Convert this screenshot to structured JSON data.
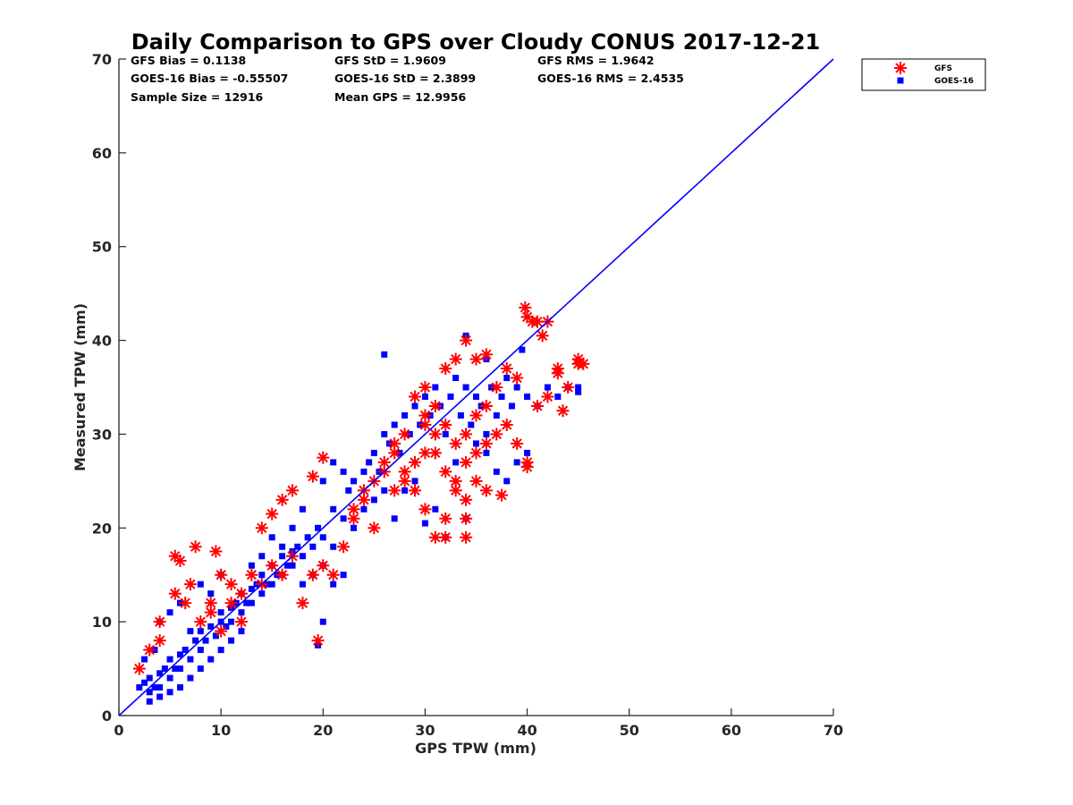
{
  "chart_data": {
    "type": "scatter",
    "title": "Daily Comparison to GPS over Cloudy CONUS 2017-12-21",
    "xlabel": "GPS TPW (mm)",
    "ylabel": "Measured TPW (mm)",
    "xlim": [
      0,
      70
    ],
    "ylim": [
      0,
      70
    ],
    "x_ticks": [
      "0",
      "10",
      "20",
      "30",
      "40",
      "50",
      "60",
      "70"
    ],
    "y_ticks": [
      "0",
      "10",
      "20",
      "30",
      "40",
      "50",
      "60",
      "70"
    ],
    "grid": false,
    "legend_position": "top-right, outside plot",
    "stats": [
      {
        "id": "gfs_bias",
        "text": "GFS Bias = 0.1138"
      },
      {
        "id": "gfs_std",
        "text": "GFS StD = 1.9609"
      },
      {
        "id": "gfs_rms",
        "text": "GFS RMS = 1.9642"
      },
      {
        "id": "goes_bias",
        "text": "GOES-16 Bias = -0.55507"
      },
      {
        "id": "goes_std",
        "text": "GOES-16 StD = 2.3899"
      },
      {
        "id": "goes_rms",
        "text": "GOES-16 RMS = 2.4535"
      },
      {
        "id": "sample_size",
        "text": "Sample Size = 12916"
      },
      {
        "id": "mean_gps",
        "text": "Mean GPS = 12.9956"
      }
    ],
    "reference_line": {
      "x": [
        0,
        70
      ],
      "y": [
        0,
        70
      ],
      "color": "#0000ff"
    },
    "series": [
      {
        "name": "GOES-16",
        "marker": "square",
        "color": "#0000ff",
        "points": [
          [
            2,
            3
          ],
          [
            2.5,
            3.5
          ],
          [
            3,
            2.5
          ],
          [
            3,
            4
          ],
          [
            3.5,
            3
          ],
          [
            4,
            4.5
          ],
          [
            4,
            3
          ],
          [
            4.5,
            5
          ],
          [
            5,
            4
          ],
          [
            5,
            6
          ],
          [
            5.5,
            5
          ],
          [
            6,
            6.5
          ],
          [
            6,
            5
          ],
          [
            6.5,
            7
          ],
          [
            7,
            6
          ],
          [
            7.5,
            8
          ],
          [
            8,
            7
          ],
          [
            8,
            9
          ],
          [
            8.5,
            8
          ],
          [
            9,
            9.5
          ],
          [
            9.5,
            8.5
          ],
          [
            10,
            10
          ],
          [
            10,
            11
          ],
          [
            10.5,
            9.5
          ],
          [
            11,
            11.5
          ],
          [
            11,
            10
          ],
          [
            11.5,
            12
          ],
          [
            12,
            11
          ],
          [
            12,
            13
          ],
          [
            12.5,
            12
          ],
          [
            13,
            13.5
          ],
          [
            13,
            12
          ],
          [
            13.5,
            14
          ],
          [
            14,
            13
          ],
          [
            14,
            15
          ],
          [
            14.5,
            14
          ],
          [
            15,
            16
          ],
          [
            15,
            14
          ],
          [
            15.5,
            15
          ],
          [
            16,
            17
          ],
          [
            16,
            15
          ],
          [
            16.5,
            16
          ],
          [
            17,
            17.5
          ],
          [
            17,
            16
          ],
          [
            17.5,
            18
          ],
          [
            18,
            17
          ],
          [
            18.5,
            19
          ],
          [
            19,
            18
          ],
          [
            19.5,
            20
          ],
          [
            20,
            19
          ],
          [
            21,
            22
          ],
          [
            22,
            21
          ],
          [
            22.5,
            24
          ],
          [
            23,
            25
          ],
          [
            24,
            26
          ],
          [
            24.5,
            27
          ],
          [
            25,
            28
          ],
          [
            25.5,
            26
          ],
          [
            26,
            30
          ],
          [
            26.5,
            29
          ],
          [
            27,
            31
          ],
          [
            27.5,
            28
          ],
          [
            28,
            32
          ],
          [
            28.5,
            30
          ],
          [
            29,
            33
          ],
          [
            29.5,
            31
          ],
          [
            30,
            34
          ],
          [
            30.5,
            32
          ],
          [
            31,
            35
          ],
          [
            31.5,
            33
          ],
          [
            32,
            30
          ],
          [
            32.5,
            34
          ],
          [
            33,
            36
          ],
          [
            33.5,
            32
          ],
          [
            34,
            35
          ],
          [
            34.5,
            31
          ],
          [
            35,
            34
          ],
          [
            35.5,
            33
          ],
          [
            36,
            30
          ],
          [
            36.5,
            35
          ],
          [
            37,
            32
          ],
          [
            37.5,
            34
          ],
          [
            38,
            36
          ],
          [
            38.5,
            33
          ],
          [
            39,
            35
          ],
          [
            40,
            34
          ],
          [
            41,
            33
          ],
          [
            42,
            35
          ],
          [
            43,
            34
          ],
          [
            44,
            35
          ],
          [
            45,
            35
          ],
          [
            45,
            34.5
          ],
          [
            26,
            38.5
          ],
          [
            30,
            20.5
          ],
          [
            32,
            19
          ],
          [
            34,
            21
          ],
          [
            31,
            22
          ],
          [
            27,
            21
          ],
          [
            28,
            24
          ],
          [
            29,
            25
          ],
          [
            33,
            27
          ],
          [
            35,
            29
          ],
          [
            36,
            28
          ],
          [
            37,
            26
          ],
          [
            38,
            25
          ],
          [
            39,
            27
          ],
          [
            40,
            28
          ],
          [
            34,
            40.5
          ],
          [
            39.5,
            39
          ],
          [
            36,
            38
          ],
          [
            3,
            1.5
          ],
          [
            4,
            2
          ],
          [
            5,
            2.5
          ],
          [
            6,
            3
          ],
          [
            7,
            4
          ],
          [
            8,
            5
          ],
          [
            9,
            6
          ],
          [
            10,
            7
          ],
          [
            11,
            8
          ],
          [
            12,
            9
          ],
          [
            5,
            11
          ],
          [
            6,
            12
          ],
          [
            4,
            10
          ],
          [
            7,
            9
          ],
          [
            2.5,
            6
          ],
          [
            3.5,
            7
          ],
          [
            9,
            13
          ],
          [
            8,
            14
          ],
          [
            10,
            15
          ],
          [
            20,
            10
          ],
          [
            19.5,
            7.5
          ],
          [
            22,
            15
          ],
          [
            21,
            18
          ],
          [
            23,
            20
          ],
          [
            24,
            22
          ],
          [
            25,
            23
          ],
          [
            26,
            24
          ],
          [
            20,
            25
          ],
          [
            21,
            27
          ],
          [
            22,
            26
          ],
          [
            18,
            22
          ],
          [
            17,
            20
          ],
          [
            16,
            18
          ],
          [
            15,
            19
          ],
          [
            14,
            17
          ],
          [
            13,
            16
          ],
          [
            18,
            14
          ],
          [
            19,
            15
          ],
          [
            20,
            16
          ],
          [
            21,
            14
          ]
        ]
      },
      {
        "name": "GFS",
        "marker": "asterisk",
        "color": "#ff0000",
        "points": [
          [
            2,
            5
          ],
          [
            3,
            7
          ],
          [
            4,
            8
          ],
          [
            5.5,
            17
          ],
          [
            6,
            16.5
          ],
          [
            7,
            14
          ],
          [
            7.5,
            18
          ],
          [
            9.5,
            17.5
          ],
          [
            10,
            15
          ],
          [
            5.5,
            13
          ],
          [
            6.5,
            12
          ],
          [
            4,
            10
          ],
          [
            9,
            11
          ],
          [
            11,
            12
          ],
          [
            12,
            10
          ],
          [
            19.5,
            8
          ],
          [
            18,
            12
          ],
          [
            19,
            15
          ],
          [
            20,
            16
          ],
          [
            21,
            15
          ],
          [
            20,
            27.5
          ],
          [
            19,
            25.5
          ],
          [
            17,
            24
          ],
          [
            16,
            23
          ],
          [
            15,
            21.5
          ],
          [
            14,
            20
          ],
          [
            22,
            18
          ],
          [
            23,
            22
          ],
          [
            24,
            24
          ],
          [
            25,
            20
          ],
          [
            26,
            26
          ],
          [
            27,
            24
          ],
          [
            28,
            25
          ],
          [
            29,
            27
          ],
          [
            30,
            28
          ],
          [
            31,
            30
          ],
          [
            32,
            26
          ],
          [
            33,
            25
          ],
          [
            34,
            27
          ],
          [
            35,
            28
          ],
          [
            36,
            29
          ],
          [
            37,
            30
          ],
          [
            38,
            31
          ],
          [
            39,
            29
          ],
          [
            40,
            27
          ],
          [
            40,
            26.5
          ],
          [
            37.5,
            23.5
          ],
          [
            36,
            24
          ],
          [
            35,
            25
          ],
          [
            34,
            23
          ],
          [
            33,
            24
          ],
          [
            32,
            21
          ],
          [
            31,
            19
          ],
          [
            32,
            19
          ],
          [
            34,
            19
          ],
          [
            34,
            21
          ],
          [
            30,
            22
          ],
          [
            29,
            24
          ],
          [
            28,
            26
          ],
          [
            27,
            28
          ],
          [
            39.8,
            43.5
          ],
          [
            40,
            42.5
          ],
          [
            40.5,
            42
          ],
          [
            41,
            42
          ],
          [
            41.5,
            40.5
          ],
          [
            42,
            42
          ],
          [
            43,
            36.5
          ],
          [
            43,
            37
          ],
          [
            43.5,
            32.5
          ],
          [
            45,
            37.5
          ],
          [
            45.5,
            37.5
          ],
          [
            45,
            38
          ],
          [
            44,
            35
          ],
          [
            42,
            34
          ],
          [
            41,
            33
          ],
          [
            36,
            38.5
          ],
          [
            35,
            38
          ],
          [
            33,
            38
          ],
          [
            34,
            40
          ],
          [
            32,
            37
          ],
          [
            30,
            35
          ],
          [
            29,
            34
          ],
          [
            31,
            33
          ],
          [
            30,
            31
          ],
          [
            28,
            30
          ],
          [
            27,
            29
          ],
          [
            26,
            27
          ],
          [
            25,
            25
          ],
          [
            24,
            23
          ],
          [
            23,
            21
          ],
          [
            38,
            37
          ],
          [
            37,
            35
          ],
          [
            39,
            36
          ],
          [
            36,
            33
          ],
          [
            35,
            32
          ],
          [
            34,
            30
          ],
          [
            33,
            29
          ],
          [
            32,
            31
          ],
          [
            31,
            28
          ],
          [
            30,
            32
          ],
          [
            8,
            10
          ],
          [
            10,
            9
          ],
          [
            12,
            13
          ],
          [
            13,
            15
          ],
          [
            14,
            14
          ],
          [
            15,
            16
          ],
          [
            16,
            15
          ],
          [
            17,
            17
          ],
          [
            11,
            14
          ],
          [
            9,
            12
          ]
        ]
      }
    ]
  }
}
